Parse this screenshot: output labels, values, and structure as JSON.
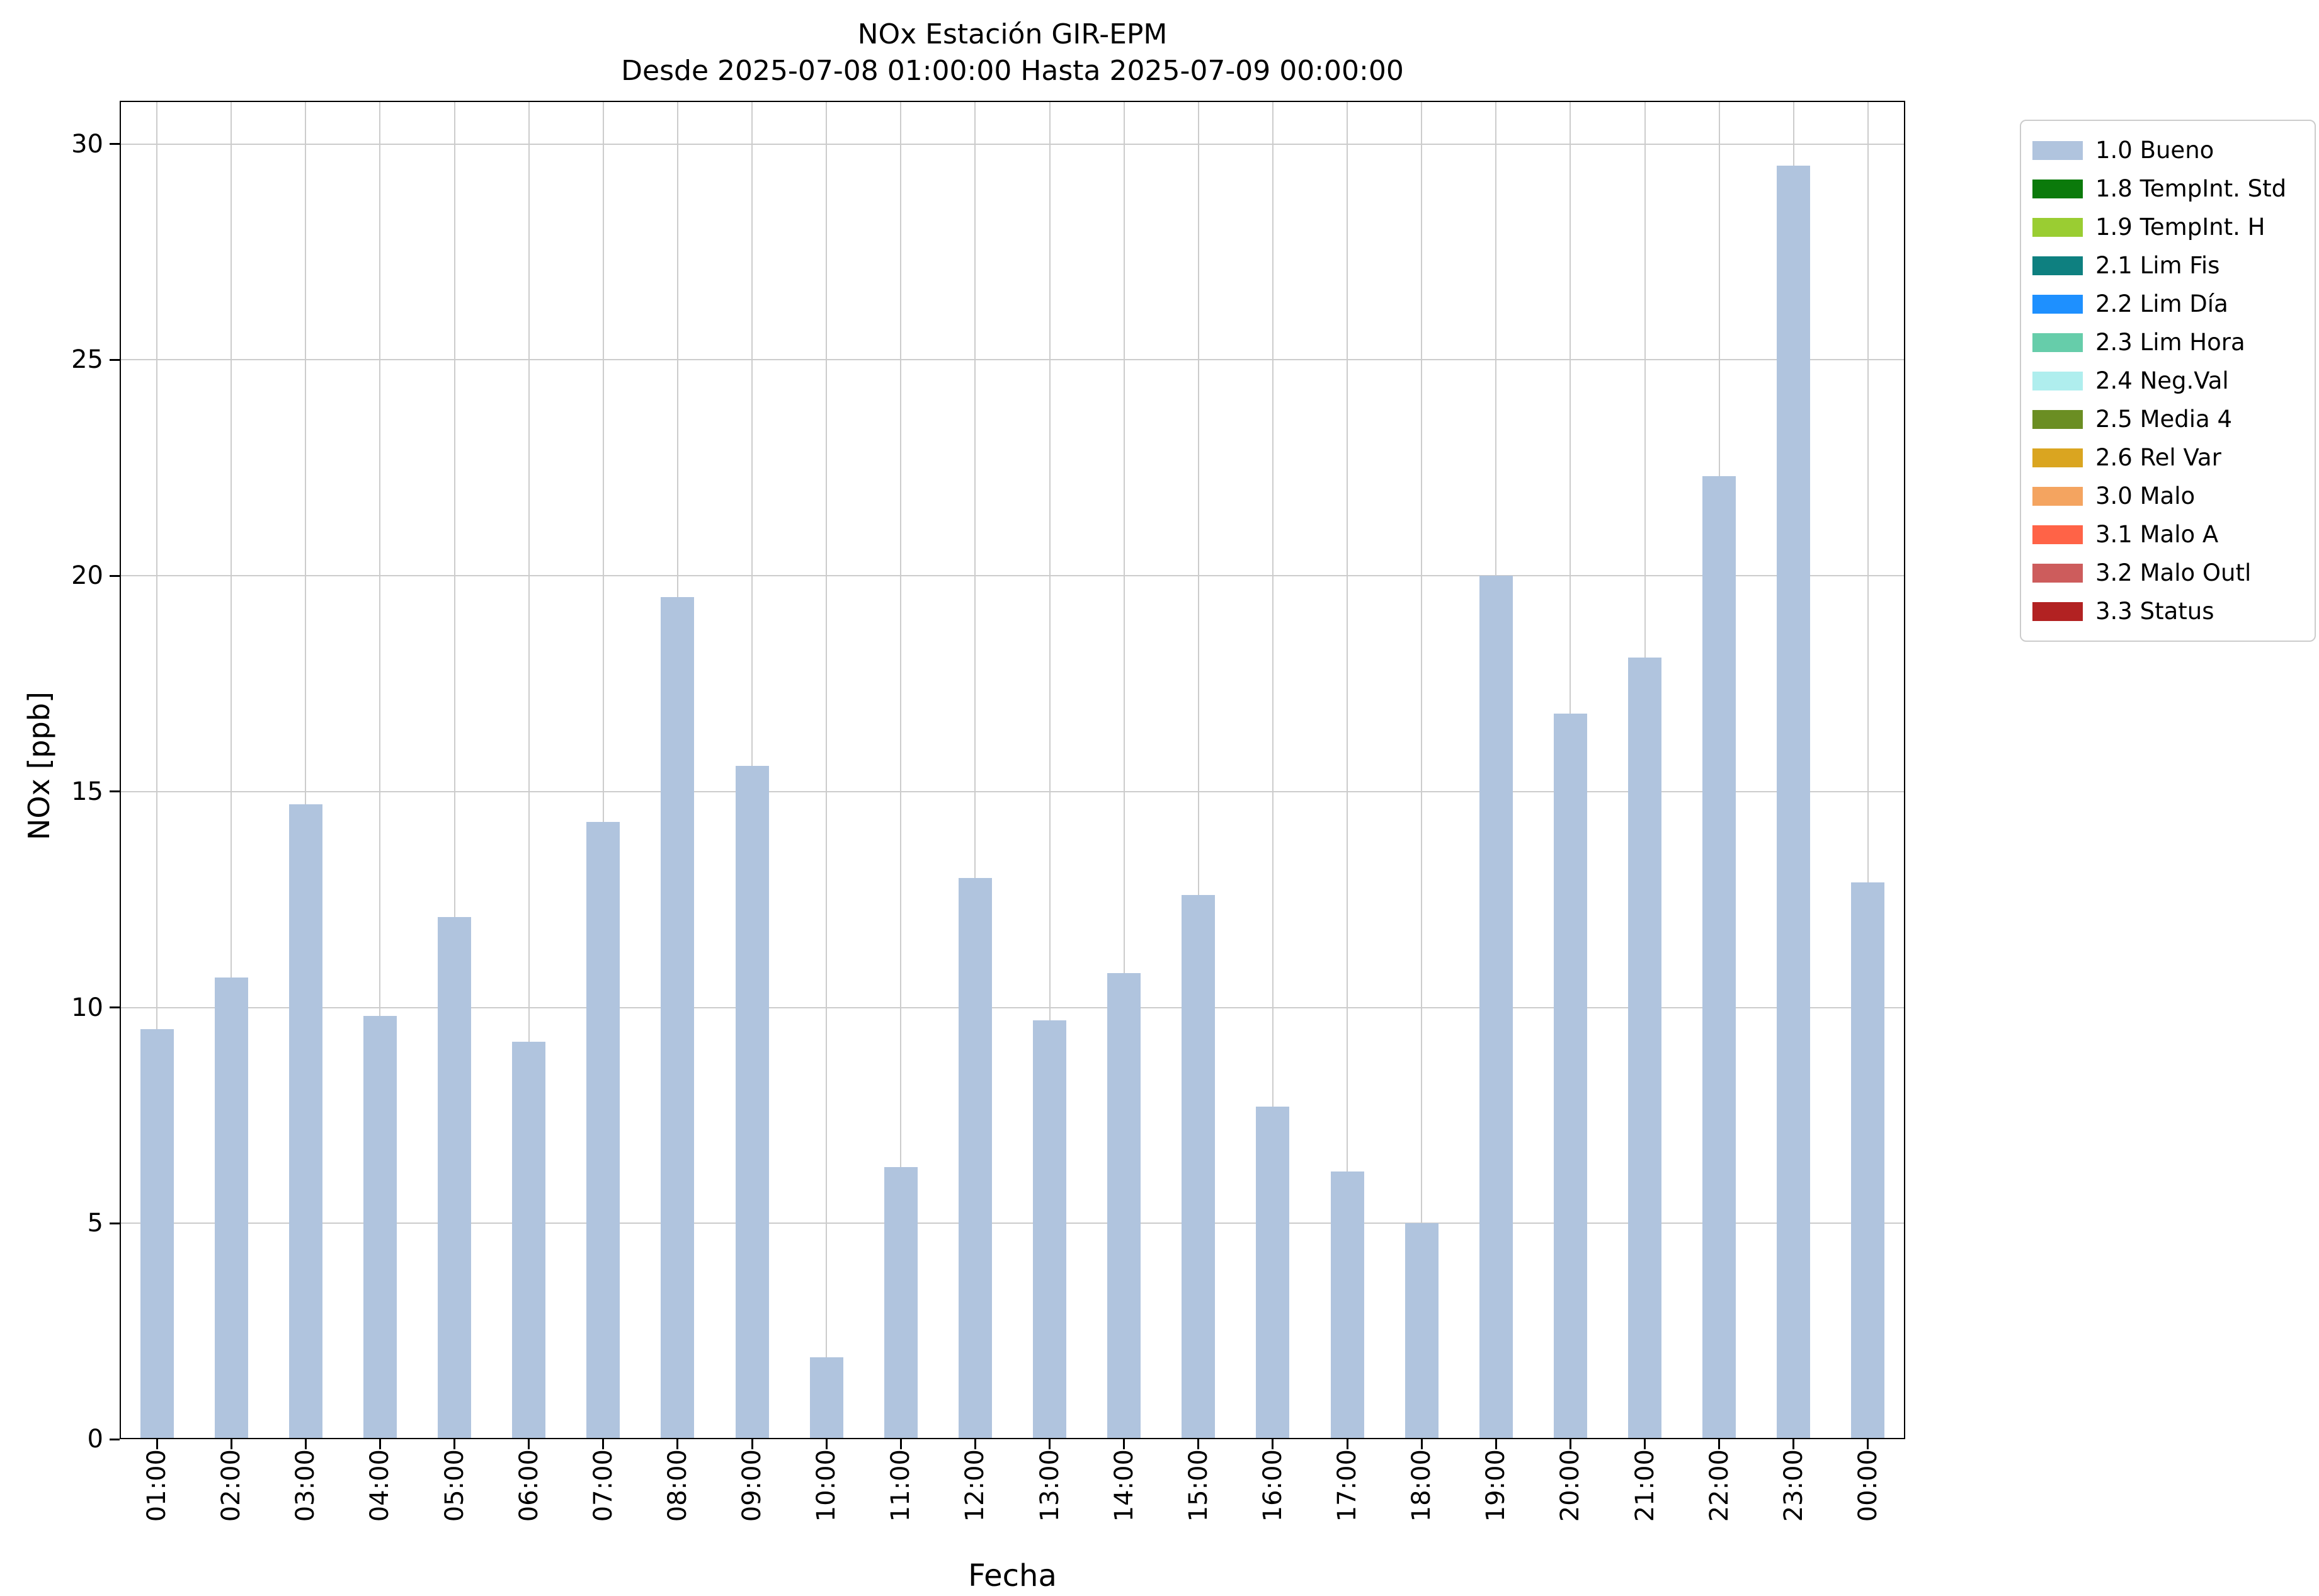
{
  "chart_data": {
    "type": "bar",
    "title": "NOx Estación GIR-EPM",
    "subtitle": "Desde 2025-07-08 01:00:00 Hasta 2025-07-09 00:00:00",
    "xlabel": "Fecha",
    "ylabel": "NOx [ppb]",
    "ylim": [
      0,
      31
    ],
    "yticks": [
      0,
      5,
      10,
      15,
      20,
      25,
      30
    ],
    "grid": true,
    "bar_color": "#B0C4DE",
    "categories": [
      "01:00",
      "02:00",
      "03:00",
      "04:00",
      "05:00",
      "06:00",
      "07:00",
      "08:00",
      "09:00",
      "10:00",
      "11:00",
      "12:00",
      "13:00",
      "14:00",
      "15:00",
      "16:00",
      "17:00",
      "18:00",
      "19:00",
      "20:00",
      "21:00",
      "22:00",
      "23:00",
      "00:00"
    ],
    "values": [
      9.5,
      10.7,
      14.7,
      9.8,
      12.1,
      9.2,
      14.3,
      19.5,
      15.6,
      1.9,
      6.3,
      13.0,
      9.7,
      10.8,
      12.6,
      7.7,
      6.2,
      5.0,
      20.0,
      16.8,
      18.1,
      22.3,
      29.5,
      12.9
    ],
    "legend_position": "outside-right-top",
    "legend": [
      {
        "label": "1.0 Bueno",
        "color": "#B0C4DE"
      },
      {
        "label": "1.8 TempInt. Std",
        "color": "#0B7A0B"
      },
      {
        "label": "1.9 TempInt. H",
        "color": "#9ACD32"
      },
      {
        "label": "2.1 Lim Fis",
        "color": "#0E8080"
      },
      {
        "label": "2.2 Lim Día",
        "color": "#1E90FF"
      },
      {
        "label": "2.3 Lim Hora",
        "color": "#66CDAA"
      },
      {
        "label": "2.4 Neg.Val",
        "color": "#AFEEEE"
      },
      {
        "label": "2.5 Media 4",
        "color": "#6B8E23"
      },
      {
        "label": "2.6 Rel Var",
        "color": "#DAA520"
      },
      {
        "label": "3.0 Malo",
        "color": "#F4A460"
      },
      {
        "label": "3.1 Malo A",
        "color": "#FF6347"
      },
      {
        "label": "3.2 Malo Outl",
        "color": "#CD5C5C"
      },
      {
        "label": "3.3 Status",
        "color": "#B22222"
      }
    ]
  }
}
